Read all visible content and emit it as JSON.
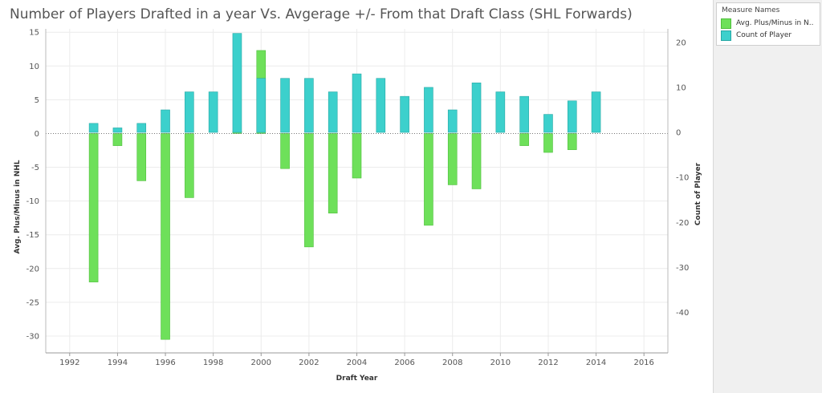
{
  "chart_data": {
    "type": "bar",
    "title": "Number of Players Drafted in a year Vs. Avgerage +/- From that Draft Class (SHL Forwards)",
    "xlabel": "Draft Year",
    "ylabel_left": "Avg. Plus/Minus in NHL",
    "ylabel_right": "Count of Player",
    "xlim": [
      1991,
      2017
    ],
    "ylim_left": [
      -32.5,
      15.5
    ],
    "ylim_right": [
      -49,
      23
    ],
    "x_ticks": [
      "1992",
      "1994",
      "1996",
      "1998",
      "2000",
      "2002",
      "2004",
      "2006",
      "2008",
      "2010",
      "2012",
      "2014",
      "2016"
    ],
    "y_ticks_left": [
      "15",
      "10",
      "5",
      "0",
      "-5",
      "-10",
      "-15",
      "-20",
      "-25",
      "-30"
    ],
    "y_ticks_right": [
      "20",
      "10",
      "0",
      "-10",
      "-20",
      "-30",
      "-40"
    ],
    "legend_title": "Measure Names",
    "legend_position": "top-right",
    "gridlines": true,
    "series": [
      {
        "name": "Avg. Plus/Minus in N..",
        "axis": "left",
        "color": "#6ee05a",
        "x": [
          1993,
          1994,
          1995,
          1996,
          1997,
          1999,
          2000,
          2001,
          2002,
          2003,
          2004,
          2007,
          2008,
          2009,
          2011,
          2012,
          2013
        ],
        "values": [
          -22,
          -1.8,
          -7,
          -30.5,
          -9.5,
          0.3,
          12.3,
          -5.2,
          -16.8,
          -11.8,
          -6.6,
          -13.6,
          -7.6,
          -8.2,
          -1.8,
          -2.8,
          -2.4
        ]
      },
      {
        "name": "Count of Player",
        "axis": "right",
        "color": "#3cd0cc",
        "x": [
          1993,
          1994,
          1995,
          1996,
          1997,
          1998,
          1999,
          2000,
          2001,
          2002,
          2003,
          2004,
          2005,
          2006,
          2007,
          2008,
          2009,
          2010,
          2011,
          2012,
          2013,
          2014
        ],
        "values": [
          2,
          1,
          2,
          5,
          9,
          9,
          22,
          12,
          12,
          12,
          9,
          13,
          12,
          8,
          10,
          5,
          11,
          9,
          8,
          4,
          7,
          9
        ]
      }
    ]
  }
}
